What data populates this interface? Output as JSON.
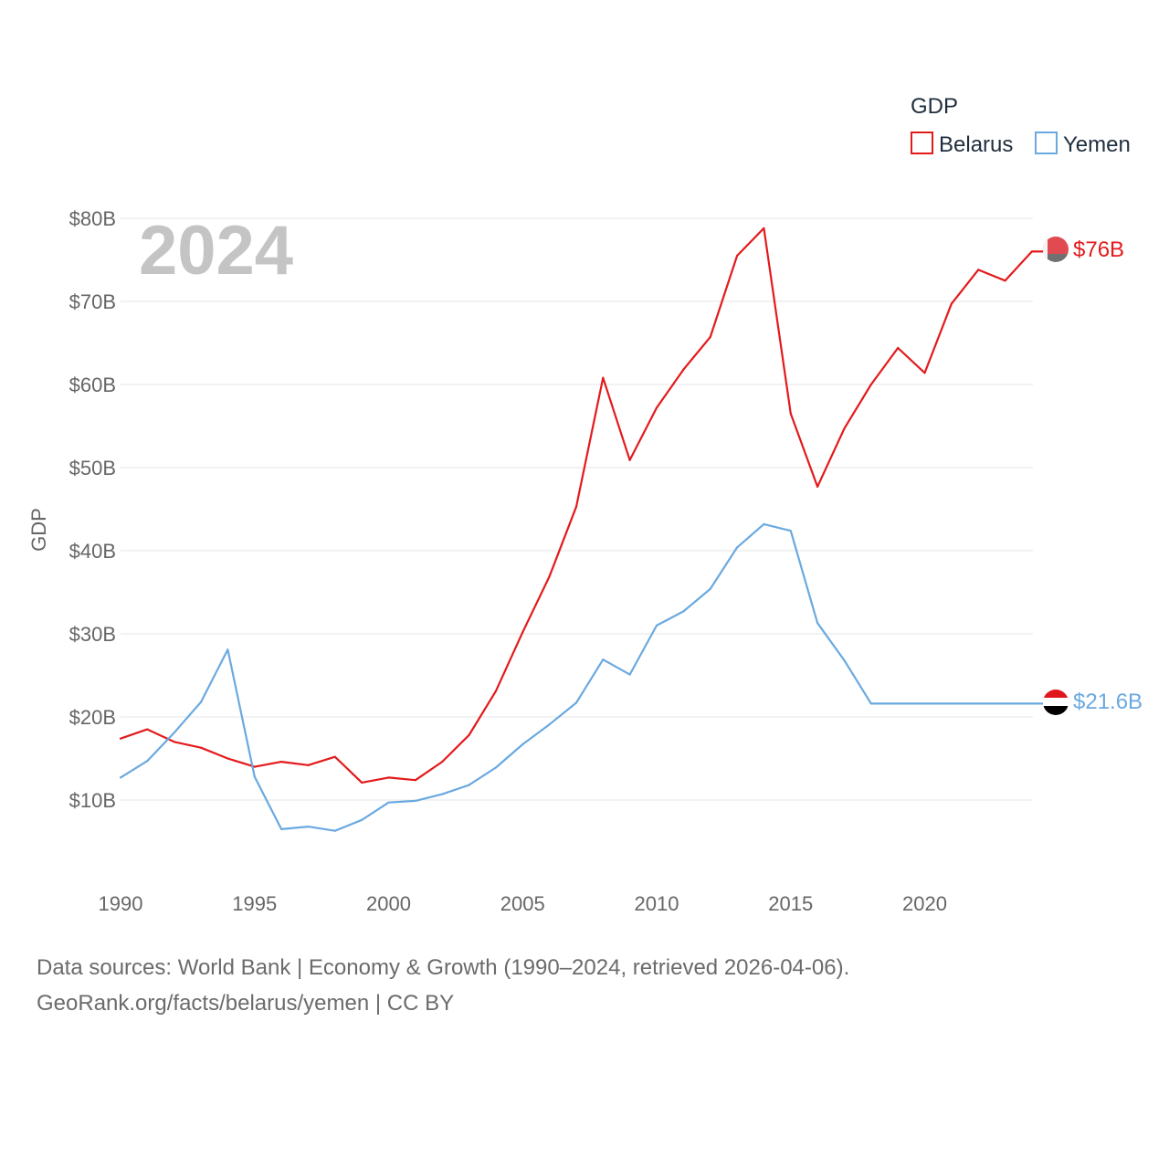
{
  "chart_data": {
    "type": "line",
    "legend_title": "GDP",
    "ylabel": "GDP",
    "year_label": "2024",
    "ylim": [
      0,
      80
    ],
    "y_unit": "billion USD",
    "y_ticks": [
      10,
      20,
      30,
      40,
      50,
      60,
      70,
      80
    ],
    "y_tick_labels": [
      "$10B",
      "$20B",
      "$30B",
      "$40B",
      "$50B",
      "$60B",
      "$70B",
      "$80B"
    ],
    "x_ticks": [
      1990,
      1995,
      2000,
      2005,
      2010,
      2015,
      2020
    ],
    "x_tick_labels": [
      "1990",
      "1995",
      "2000",
      "2005",
      "2010",
      "2015",
      "2020"
    ],
    "x": [
      1990,
      1991,
      1992,
      1993,
      1994,
      1995,
      1996,
      1997,
      1998,
      1999,
      2000,
      2001,
      2002,
      2003,
      2004,
      2005,
      2006,
      2007,
      2008,
      2009,
      2010,
      2011,
      2012,
      2013,
      2014,
      2015,
      2016,
      2017,
      2018,
      2019,
      2020,
      2021,
      2022,
      2023,
      2024
    ],
    "series": [
      {
        "name": "Belarus",
        "color": "#e31a1c",
        "end_label": "$76B",
        "values": [
          17.4,
          18.5,
          17.0,
          16.3,
          15.0,
          14.0,
          14.6,
          14.2,
          15.2,
          12.1,
          12.7,
          12.4,
          14.6,
          17.8,
          23.1,
          30.2,
          36.9,
          45.3,
          60.8,
          50.9,
          57.2,
          61.8,
          65.7,
          75.5,
          78.8,
          56.5,
          47.7,
          54.7,
          60.0,
          64.4,
          61.4,
          69.7,
          73.8,
          72.5,
          76.0
        ]
      },
      {
        "name": "Yemen",
        "color": "#6aa9e0",
        "end_label": "$21.6B",
        "values": [
          12.7,
          14.7,
          18.1,
          21.8,
          28.1,
          12.8,
          6.5,
          6.8,
          6.3,
          7.6,
          9.7,
          9.9,
          10.7,
          11.8,
          13.9,
          16.7,
          19.1,
          21.7,
          26.9,
          25.1,
          31.0,
          32.7,
          35.4,
          40.4,
          43.2,
          42.4,
          31.3,
          26.8,
          21.6,
          21.6,
          21.6,
          21.6,
          21.6,
          21.6,
          21.6
        ]
      }
    ]
  },
  "footer": {
    "source_line1": "Data sources: World Bank | Economy & Growth (1990–2024, retrieved 2026-04-06).",
    "source_line2": "GeoRank.org/facts/belarus/yemen | CC BY"
  }
}
